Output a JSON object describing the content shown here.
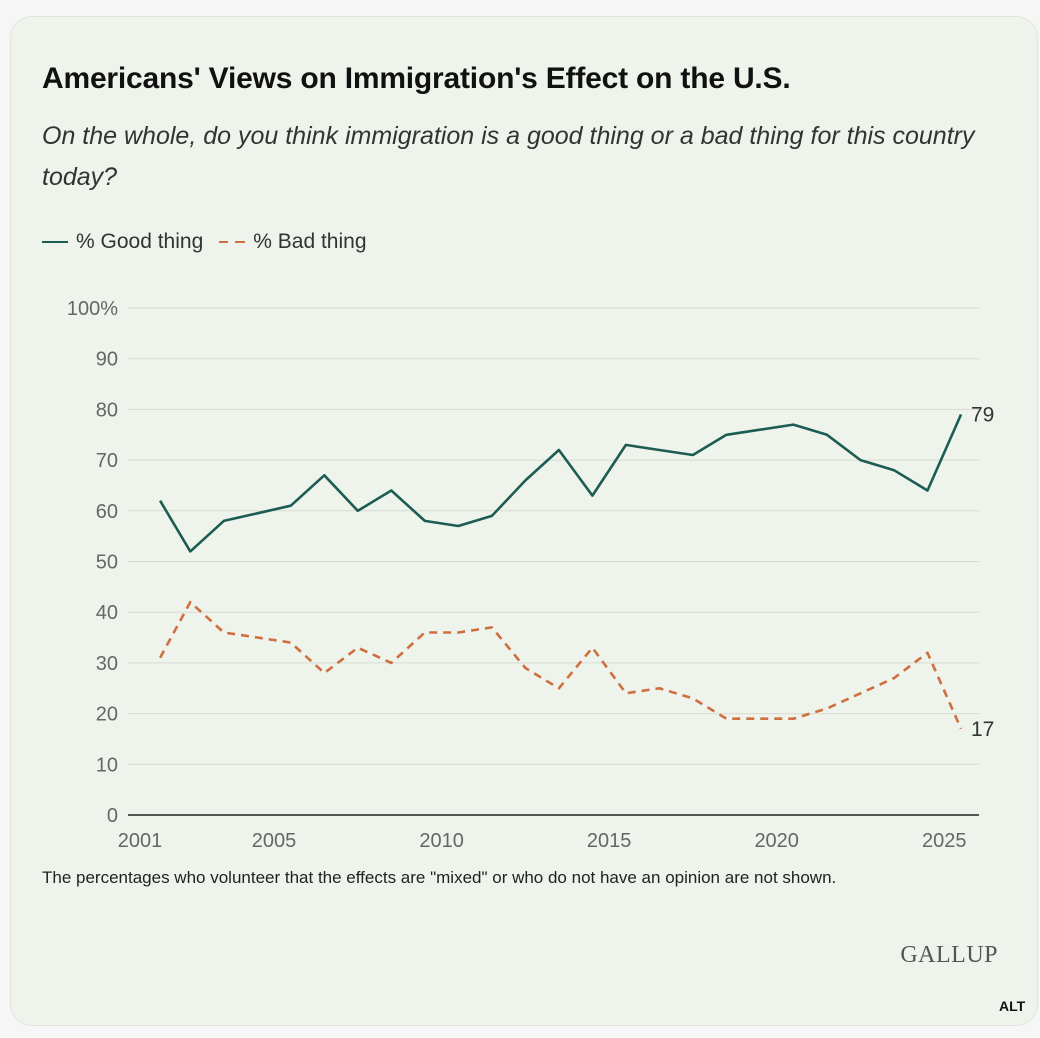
{
  "title": "Americans' Views on Immigration's Effect on the U.S.",
  "subtitle": "On the whole, do you think immigration is a good thing or a bad thing for this country today?",
  "legend": {
    "good": "% Good thing",
    "bad": "% Bad thing"
  },
  "footnote": "The percentages who volunteer that the effects are \"mixed\" or who do not have an opinion are not shown.",
  "logo": "GALLUP",
  "alt_button": "ALT",
  "colors": {
    "good": "#1d5c53",
    "bad": "#cf6f3f",
    "grid": "#d6dcd4",
    "axis": "#222222"
  },
  "chart_data": {
    "type": "line",
    "ylim": [
      0,
      100
    ],
    "xlim": [
      2001,
      2025.5
    ],
    "yticks": [
      0,
      10,
      20,
      30,
      40,
      50,
      60,
      70,
      80,
      90,
      100
    ],
    "ytick_labels": [
      "0",
      "10",
      "20",
      "30",
      "40",
      "50",
      "60",
      "70",
      "80",
      "90",
      "100%"
    ],
    "xticks": [
      2001,
      2005,
      2010,
      2015,
      2020,
      2025
    ],
    "xtick_labels": [
      "2001",
      "2005",
      "2010",
      "2015",
      "2020",
      "2025"
    ],
    "grid": true,
    "legend_position": "top-left",
    "series": [
      {
        "key": "good",
        "name": "% Good thing",
        "style": "solid",
        "x": [
          2001.6,
          2002.5,
          2003.5,
          2004.5,
          2005.5,
          2006.5,
          2007.5,
          2008.5,
          2009.5,
          2010.5,
          2011.5,
          2012.5,
          2013.5,
          2014.5,
          2015.5,
          2016.5,
          2017.5,
          2018.5,
          2019.5,
          2020.5,
          2021.5,
          2022.5,
          2023.5,
          2024.5,
          2025.5
        ],
        "values": [
          62,
          52,
          58,
          59.5,
          61,
          67,
          60,
          64,
          58,
          57,
          59,
          66,
          72,
          63,
          73,
          72,
          71,
          75,
          76,
          77,
          75,
          70,
          68,
          64,
          79
        ],
        "end_label": "79"
      },
      {
        "key": "bad",
        "name": "% Bad thing",
        "style": "dashed",
        "x": [
          2001.6,
          2002.5,
          2003.5,
          2004.5,
          2005.5,
          2006.5,
          2007.5,
          2008.5,
          2009.5,
          2010.5,
          2011.5,
          2012.5,
          2013.5,
          2014.5,
          2015.5,
          2016.5,
          2017.5,
          2018.5,
          2019.5,
          2020.5,
          2021.5,
          2022.5,
          2023.5,
          2024.5,
          2025.5
        ],
        "values": [
          31,
          42,
          36,
          35,
          34,
          28,
          33,
          30,
          36,
          36,
          37,
          29,
          25,
          33,
          24,
          25,
          23,
          19,
          19,
          19,
          21,
          24,
          27,
          32,
          17
        ],
        "end_label": "17"
      }
    ]
  }
}
